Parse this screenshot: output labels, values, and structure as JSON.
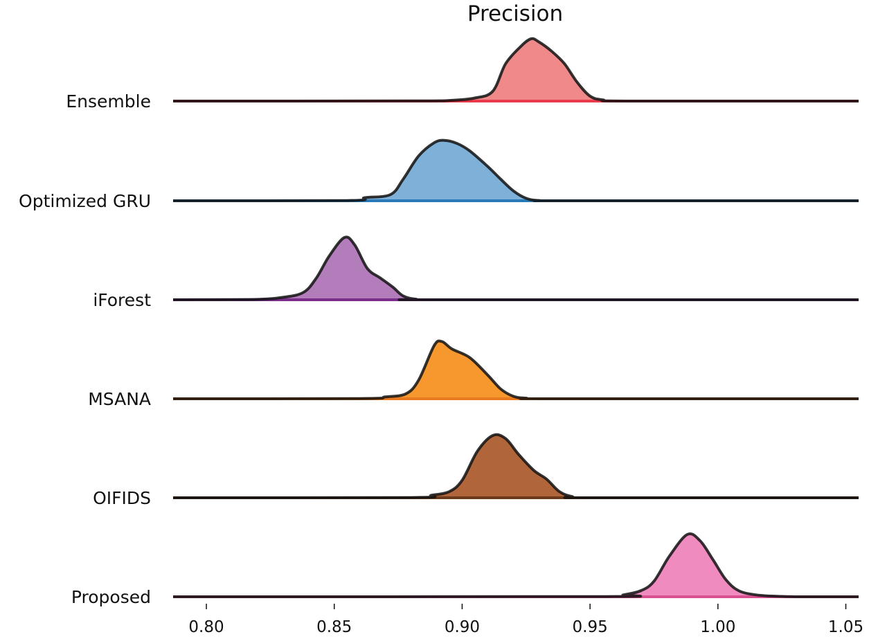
{
  "chart_data": {
    "type": "ridgeline",
    "title": "Precision",
    "xlabel": "",
    "ylabel": "",
    "xlim": [
      0.787,
      1.055
    ],
    "xticks": [
      "0.80",
      "0.85",
      "0.90",
      "0.95",
      "1.00",
      "1.05"
    ],
    "series": [
      {
        "name": "Ensemble",
        "color": "#f08a8a",
        "edge": "#e83a4a",
        "points": [
          [
            0.787,
            0
          ],
          [
            0.88,
            0.002
          ],
          [
            0.895,
            0.01
          ],
          [
            0.905,
            0.05
          ],
          [
            0.912,
            0.16
          ],
          [
            0.917,
            0.6
          ],
          [
            0.923,
            0.88
          ],
          [
            0.927,
            1.0
          ],
          [
            0.93,
            0.95
          ],
          [
            0.935,
            0.8
          ],
          [
            0.94,
            0.6
          ],
          [
            0.945,
            0.3
          ],
          [
            0.95,
            0.08
          ],
          [
            0.955,
            0.02
          ],
          [
            0.965,
            0
          ],
          [
            1.055,
            0
          ]
        ]
      },
      {
        "name": "Optimized GRU",
        "color": "#7fb1d8",
        "edge": "#2a7ab8",
        "points": [
          [
            0.787,
            0
          ],
          [
            0.855,
            0.003
          ],
          [
            0.862,
            0.05
          ],
          [
            0.872,
            0.1
          ],
          [
            0.877,
            0.35
          ],
          [
            0.883,
            0.72
          ],
          [
            0.889,
            0.93
          ],
          [
            0.893,
            0.97
          ],
          [
            0.898,
            0.92
          ],
          [
            0.903,
            0.8
          ],
          [
            0.91,
            0.55
          ],
          [
            0.915,
            0.35
          ],
          [
            0.92,
            0.16
          ],
          [
            0.925,
            0.04
          ],
          [
            0.93,
            0.005
          ],
          [
            0.94,
            0
          ],
          [
            1.055,
            0
          ]
        ]
      },
      {
        "name": "iForest",
        "color": "#b37dbb",
        "edge": "#7a2e8a",
        "points": [
          [
            0.787,
            0
          ],
          [
            0.818,
            0.005
          ],
          [
            0.83,
            0.04
          ],
          [
            0.838,
            0.12
          ],
          [
            0.843,
            0.35
          ],
          [
            0.848,
            0.7
          ],
          [
            0.854,
            1.0
          ],
          [
            0.858,
            0.88
          ],
          [
            0.863,
            0.5
          ],
          [
            0.868,
            0.35
          ],
          [
            0.873,
            0.2
          ],
          [
            0.877,
            0.06
          ],
          [
            0.882,
            0.01
          ],
          [
            0.89,
            0
          ],
          [
            1.055,
            0
          ]
        ]
      },
      {
        "name": "MSANA",
        "color": "#f7982e",
        "edge": "#e8791f",
        "points": [
          [
            0.787,
            0
          ],
          [
            0.86,
            0.003
          ],
          [
            0.87,
            0.03
          ],
          [
            0.878,
            0.08
          ],
          [
            0.883,
            0.3
          ],
          [
            0.889,
            0.85
          ],
          [
            0.892,
            0.92
          ],
          [
            0.896,
            0.8
          ],
          [
            0.903,
            0.66
          ],
          [
            0.91,
            0.38
          ],
          [
            0.915,
            0.16
          ],
          [
            0.92,
            0.04
          ],
          [
            0.925,
            0.01
          ],
          [
            0.935,
            0
          ],
          [
            1.055,
            0
          ]
        ]
      },
      {
        "name": "OIFIDS",
        "color": "#b0663a",
        "edge": "#6b3a1a",
        "points": [
          [
            0.787,
            0
          ],
          [
            0.88,
            0.003
          ],
          [
            0.888,
            0.04
          ],
          [
            0.895,
            0.1
          ],
          [
            0.9,
            0.28
          ],
          [
            0.906,
            0.75
          ],
          [
            0.912,
            1.0
          ],
          [
            0.917,
            0.95
          ],
          [
            0.922,
            0.7
          ],
          [
            0.928,
            0.44
          ],
          [
            0.933,
            0.3
          ],
          [
            0.938,
            0.1
          ],
          [
            0.943,
            0.02
          ],
          [
            0.95,
            0
          ],
          [
            1.055,
            0
          ]
        ]
      },
      {
        "name": "Proposed",
        "color": "#f08bbf",
        "edge": "#d8508f",
        "points": [
          [
            0.787,
            0
          ],
          [
            0.955,
            0.003
          ],
          [
            0.963,
            0.03
          ],
          [
            0.97,
            0.1
          ],
          [
            0.975,
            0.25
          ],
          [
            0.981,
            0.65
          ],
          [
            0.988,
            1.0
          ],
          [
            0.993,
            0.9
          ],
          [
            0.998,
            0.6
          ],
          [
            1.003,
            0.28
          ],
          [
            1.008,
            0.1
          ],
          [
            1.015,
            0.03
          ],
          [
            1.025,
            0.005
          ],
          [
            1.035,
            0
          ],
          [
            1.055,
            0
          ]
        ]
      }
    ]
  }
}
